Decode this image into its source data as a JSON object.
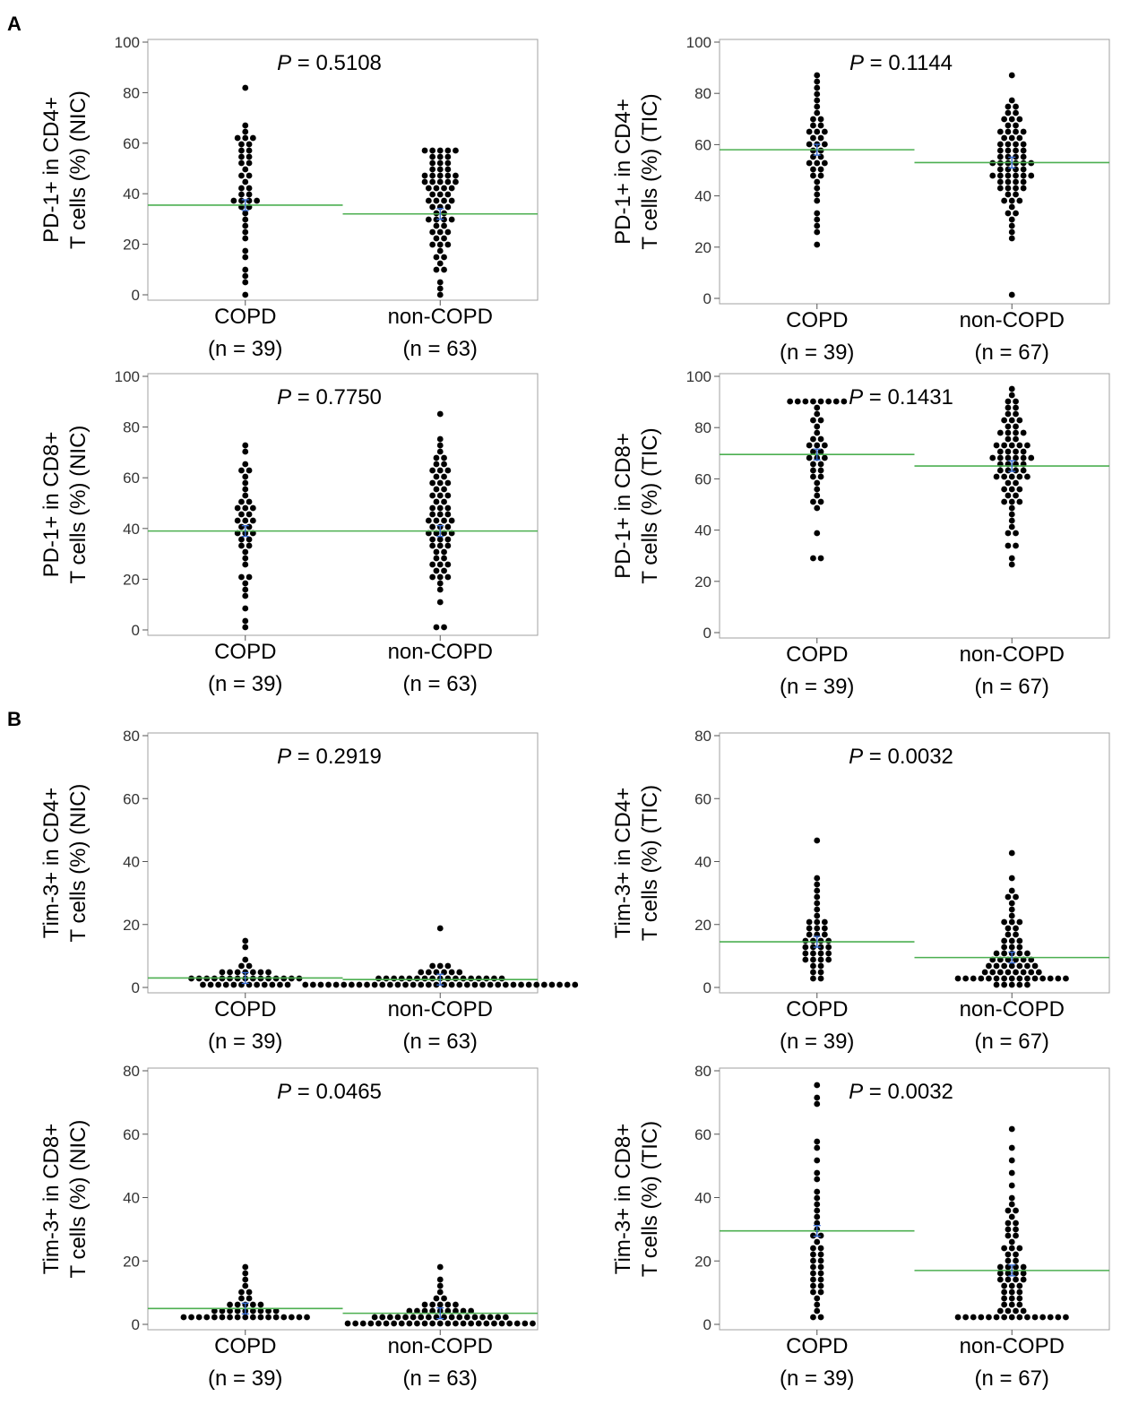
{
  "section_labels": [
    "A",
    "B"
  ],
  "colors": {
    "dot": "#000000",
    "mean_line": "#4caf50",
    "error_bar": "#3a6fd8",
    "frame": "#a0a0a0"
  },
  "chart_data": [
    {
      "type": "scatter",
      "ylabel": [
        "PD-1+ in CD4+",
        "T cells (%) (NIC)"
      ],
      "ylim": [
        0,
        100
      ],
      "yticks": [
        0,
        20,
        40,
        60,
        80,
        100
      ],
      "p_label": "P",
      "p_value": "= 0.5108",
      "categories": [
        "COPD",
        "non-COPD"
      ],
      "counts": [
        "(n = 39)",
        "(n = 63)"
      ],
      "means": [
        35.5,
        32
      ],
      "series": [
        {
          "values": [
            0,
            4,
            8,
            11,
            15,
            18,
            22,
            25,
            28,
            30,
            32,
            34,
            35,
            36,
            37,
            38,
            38,
            39,
            40,
            41,
            42,
            44,
            46,
            48,
            50,
            52,
            53,
            54,
            55,
            56,
            58,
            59,
            60,
            61,
            62,
            62,
            65,
            67,
            83
          ]
        },
        {
          "values": [
            0,
            3,
            6,
            9,
            11,
            13,
            15,
            16,
            18,
            19,
            20,
            21,
            22,
            23,
            24,
            25,
            26,
            27,
            28,
            29,
            30,
            30,
            31,
            32,
            33,
            34,
            34,
            35,
            36,
            37,
            38,
            38,
            39,
            40,
            40,
            41,
            42,
            42,
            43,
            44,
            44,
            45,
            45,
            45,
            46,
            46,
            47,
            48,
            48,
            49,
            50,
            50,
            51,
            52,
            53,
            54,
            54,
            55,
            56,
            56,
            57,
            57,
            58
          ]
        }
      ]
    },
    {
      "type": "scatter",
      "ylabel": [
        "PD-1+ in CD4+",
        "T cells (%) (TIC)"
      ],
      "ylim": [
        0,
        100
      ],
      "yticks": [
        0,
        20,
        40,
        60,
        80,
        100
      ],
      "p_label": "P",
      "p_value": "= 0.1144",
      "categories": [
        "COPD",
        "non-COPD"
      ],
      "counts": [
        "(n = 39)",
        "(n = 67)"
      ],
      "means": [
        58,
        53
      ],
      "series": [
        {
          "values": [
            22,
            25,
            28,
            31,
            34,
            37,
            40,
            43,
            45,
            47,
            49,
            50,
            51,
            52,
            53,
            54,
            55,
            56,
            57,
            58,
            59,
            60,
            61,
            62,
            63,
            64,
            65,
            66,
            67,
            68,
            69,
            70,
            72,
            75,
            78,
            80,
            83,
            85,
            87
          ]
        },
        {
          "values": [
            2,
            23,
            25,
            28,
            30,
            32,
            34,
            36,
            37,
            38,
            39,
            40,
            41,
            42,
            43,
            44,
            44,
            45,
            45,
            46,
            46,
            47,
            47,
            48,
            48,
            49,
            49,
            50,
            50,
            51,
            51,
            52,
            52,
            53,
            53,
            54,
            54,
            55,
            55,
            56,
            56,
            57,
            57,
            58,
            58,
            59,
            60,
            60,
            61,
            62,
            62,
            63,
            64,
            65,
            65,
            66,
            67,
            68,
            69,
            70,
            71,
            72,
            73,
            74,
            75,
            77,
            86
          ]
        }
      ]
    },
    {
      "type": "scatter",
      "ylabel": [
        "PD-1+ in CD8+",
        "T cells (%) (NIC)"
      ],
      "ylim": [
        0,
        100
      ],
      "yticks": [
        0,
        20,
        40,
        60,
        80,
        100
      ],
      "p_label": "P",
      "p_value": "= 0.7750",
      "categories": [
        "COPD",
        "non-COPD"
      ],
      "counts": [
        "(n = 39)",
        "(n = 63)"
      ],
      "means": [
        39,
        39
      ],
      "series": [
        {
          "values": [
            0,
            4,
            8,
            13,
            15,
            18,
            20,
            22,
            25,
            28,
            30,
            32,
            34,
            35,
            36,
            37,
            38,
            39,
            40,
            41,
            42,
            43,
            44,
            45,
            46,
            47,
            48,
            49,
            50,
            51,
            52,
            55,
            58,
            60,
            62,
            64,
            66,
            70,
            72
          ]
        },
        {
          "values": [
            1,
            2,
            10,
            15,
            18,
            20,
            21,
            22,
            23,
            24,
            25,
            26,
            27,
            28,
            29,
            30,
            31,
            32,
            33,
            34,
            35,
            35,
            36,
            37,
            38,
            38,
            39,
            40,
            40,
            41,
            42,
            43,
            43,
            44,
            45,
            45,
            46,
            47,
            48,
            49,
            50,
            51,
            52,
            53,
            54,
            55,
            56,
            57,
            58,
            59,
            60,
            61,
            62,
            63,
            64,
            65,
            66,
            67,
            68,
            70,
            72,
            76,
            84
          ]
        }
      ]
    },
    {
      "type": "scatter",
      "ylabel": [
        "PD-1+ in CD8+",
        "T cells (%) (TIC)"
      ],
      "ylim": [
        0,
        100
      ],
      "yticks": [
        0,
        20,
        40,
        60,
        80,
        100
      ],
      "p_label": "P",
      "p_value": "= 0.1431",
      "categories": [
        "COPD",
        "non-COPD"
      ],
      "counts": [
        "(n = 39)",
        "(n = 67)"
      ],
      "means": [
        69.5,
        65
      ],
      "series": [
        {
          "values": [
            28,
            29,
            40,
            48,
            50,
            52,
            54,
            56,
            58,
            60,
            62,
            63,
            64,
            65,
            66,
            67,
            68,
            69,
            70,
            71,
            72,
            73,
            74,
            75,
            76,
            78,
            80,
            82,
            84,
            86,
            88,
            89,
            90,
            91,
            91,
            91,
            91,
            91,
            91
          ]
        },
        {
          "values": [
            27,
            30,
            33,
            35,
            38,
            40,
            42,
            44,
            46,
            48,
            50,
            51,
            52,
            53,
            54,
            55,
            56,
            57,
            58,
            59,
            60,
            61,
            61,
            62,
            62,
            63,
            63,
            64,
            64,
            65,
            65,
            66,
            66,
            67,
            67,
            68,
            68,
            69,
            69,
            70,
            70,
            71,
            71,
            72,
            72,
            73,
            74,
            74,
            75,
            76,
            77,
            78,
            78,
            79,
            80,
            81,
            82,
            83,
            84,
            85,
            86,
            87,
            88,
            89,
            90,
            93,
            94
          ]
        }
      ]
    },
    {
      "type": "scatter",
      "ylabel": [
        "Tim-3+ in CD4+",
        "T cells (%) (NIC)"
      ],
      "ylim": [
        0,
        80
      ],
      "yticks": [
        0,
        20,
        40,
        60,
        80
      ],
      "p_label": "P",
      "p_value": "= 0.2919",
      "categories": [
        "COPD",
        "non-COPD"
      ],
      "counts": [
        "(n = 39)",
        "(n = 63)"
      ],
      "means": [
        3,
        2.5
      ],
      "series": [
        {
          "values": [
            1,
            1,
            1,
            1,
            1,
            1,
            1,
            1,
            1,
            1,
            1,
            1,
            2,
            2,
            2,
            2,
            2,
            2,
            2,
            2,
            3,
            3,
            3,
            3,
            3,
            3,
            3,
            4,
            4,
            4,
            4,
            4,
            5,
            5,
            6,
            7,
            9,
            12,
            15
          ]
        },
        {
          "values": [
            1,
            1,
            1,
            1,
            1,
            1,
            1,
            1,
            1,
            1,
            1,
            1,
            1,
            1,
            1,
            1,
            1,
            1,
            1,
            1,
            1,
            1,
            1,
            1,
            1,
            1,
            1,
            1,
            1,
            1,
            1,
            1,
            1,
            1,
            1,
            1,
            2,
            2,
            2,
            2,
            2,
            2,
            2,
            2,
            2,
            3,
            3,
            3,
            3,
            3,
            3,
            3,
            3,
            4,
            4,
            4,
            4,
            5,
            5,
            6,
            6,
            7,
            18
          ]
        }
      ]
    },
    {
      "type": "scatter",
      "ylabel": [
        "Tim-3+ in CD4+",
        "T cells (%) (TIC)"
      ],
      "ylim": [
        0,
        80
      ],
      "yticks": [
        0,
        20,
        40,
        60,
        80
      ],
      "p_label": "P",
      "p_value": "= 0.0032",
      "categories": [
        "COPD",
        "non-COPD"
      ],
      "counts": [
        "(n = 39)",
        "(n = 67)"
      ],
      "means": [
        14.5,
        9.5
      ],
      "series": [
        {
          "values": [
            2,
            3,
            4,
            5,
            6,
            7,
            8,
            8,
            9,
            9,
            10,
            10,
            11,
            11,
            12,
            12,
            13,
            13,
            14,
            14,
            15,
            15,
            16,
            16,
            17,
            18,
            18,
            19,
            20,
            20,
            21,
            22,
            24,
            26,
            28,
            30,
            32,
            34,
            46
          ]
        },
        {
          "values": [
            1,
            1,
            1,
            1,
            1,
            2,
            2,
            2,
            2,
            3,
            3,
            3,
            3,
            3,
            3,
            3,
            3,
            3,
            3,
            3,
            4,
            4,
            4,
            4,
            5,
            5,
            5,
            5,
            6,
            6,
            6,
            6,
            7,
            7,
            7,
            8,
            8,
            8,
            9,
            9,
            9,
            10,
            10,
            10,
            11,
            11,
            12,
            12,
            13,
            14,
            14,
            15,
            16,
            17,
            18,
            19,
            20,
            21,
            21,
            22,
            24,
            26,
            28,
            29,
            30,
            35,
            43
          ]
        }
      ]
    },
    {
      "type": "scatter",
      "ylabel": [
        "Tim-3+ in CD8+",
        "T cells (%) (NIC)"
      ],
      "ylim": [
        0,
        80
      ],
      "yticks": [
        0,
        20,
        40,
        60,
        80
      ],
      "p_label": "P",
      "p_value": "= 0.0465",
      "categories": [
        "COPD",
        "non-COPD"
      ],
      "counts": [
        "(n = 39)",
        "(n = 63)"
      ],
      "means": [
        5,
        3.5
      ],
      "series": [
        {
          "values": [
            2,
            2,
            2,
            2,
            2,
            2,
            2,
            2,
            2,
            2,
            2,
            2,
            3,
            3,
            3,
            3,
            3,
            4,
            4,
            4,
            4,
            4,
            5,
            5,
            5,
            5,
            6,
            6,
            6,
            7,
            7,
            8,
            9,
            10,
            11,
            12,
            14,
            16,
            19
          ]
        },
        {
          "values": [
            1,
            1,
            1,
            1,
            1,
            1,
            1,
            1,
            1,
            1,
            1,
            1,
            1,
            1,
            1,
            1,
            1,
            1,
            1,
            1,
            1,
            1,
            1,
            1,
            1,
            2,
            2,
            2,
            2,
            2,
            2,
            2,
            2,
            2,
            2,
            3,
            3,
            3,
            3,
            3,
            3,
            3,
            3,
            4,
            4,
            4,
            4,
            4,
            5,
            5,
            5,
            5,
            6,
            6,
            6,
            7,
            7,
            8,
            9,
            10,
            12,
            15,
            18
          ]
        }
      ]
    },
    {
      "type": "scatter",
      "ylabel": [
        "Tim-3+ in CD8+",
        "T cells (%) (TIC)"
      ],
      "ylim": [
        0,
        80
      ],
      "yticks": [
        0,
        20,
        40,
        60,
        80
      ],
      "p_label": "P",
      "p_value": "= 0.0032",
      "categories": [
        "COPD",
        "non-COPD"
      ],
      "counts": [
        "(n = 39)",
        "(n = 67)"
      ],
      "means": [
        29.5,
        17
      ],
      "series": [
        {
          "values": [
            2,
            3,
            4,
            6,
            8,
            10,
            11,
            12,
            13,
            14,
            15,
            16,
            17,
            18,
            19,
            20,
            21,
            22,
            23,
            24,
            25,
            26,
            27,
            28,
            30,
            32,
            34,
            36,
            38,
            40,
            42,
            45,
            48,
            52,
            55,
            57,
            70,
            72,
            75
          ]
        },
        {
          "values": [
            2,
            2,
            2,
            2,
            2,
            2,
            2,
            2,
            2,
            2,
            2,
            2,
            3,
            3,
            3,
            4,
            4,
            5,
            5,
            6,
            6,
            7,
            8,
            8,
            9,
            10,
            10,
            11,
            12,
            12,
            13,
            14,
            14,
            15,
            15,
            16,
            16,
            17,
            17,
            18,
            18,
            19,
            19,
            20,
            21,
            22,
            23,
            24,
            24,
            25,
            26,
            27,
            28,
            29,
            30,
            31,
            32,
            33,
            35,
            36,
            38,
            40,
            44,
            48,
            52,
            56,
            61
          ]
        }
      ]
    }
  ]
}
